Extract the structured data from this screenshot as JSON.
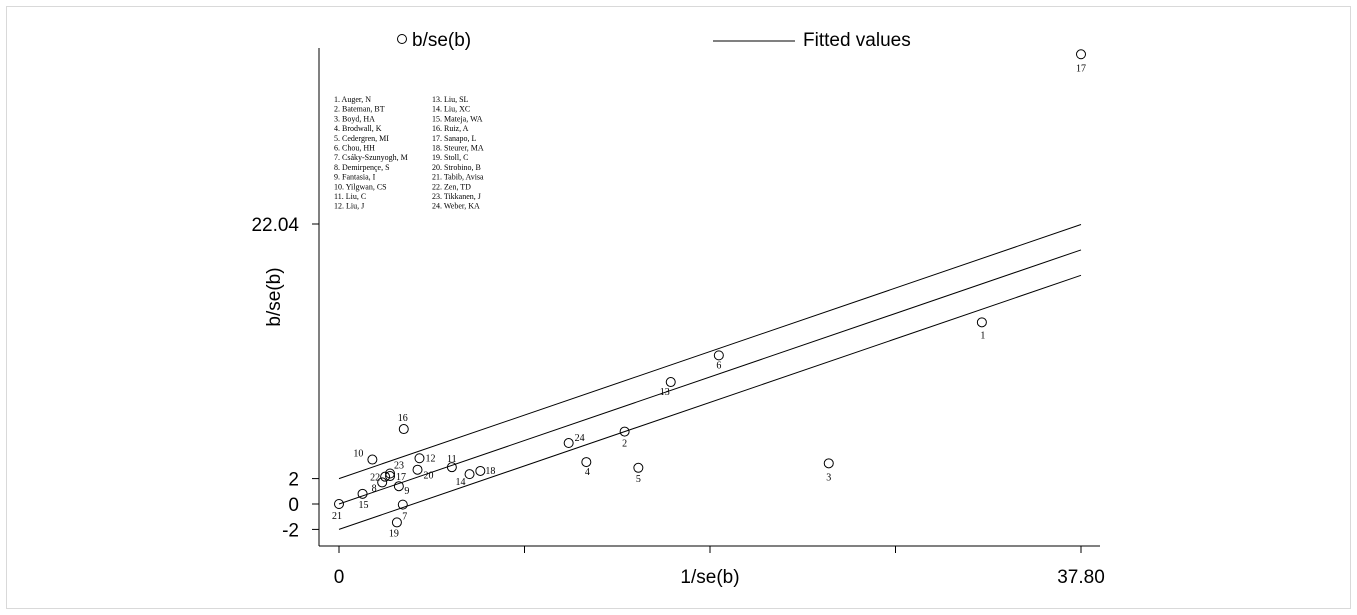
{
  "chart_data": {
    "type": "scatter",
    "xlabel": "1/se(b)",
    "ylabel": "b/se(b)",
    "x_ticks": [
      {
        "value": 0,
        "label": "0"
      },
      {
        "value": 9.45,
        "label": ""
      },
      {
        "value": 18.9,
        "label": "1/se(b)"
      },
      {
        "value": 28.35,
        "label": ""
      },
      {
        "value": 37.8,
        "label": "37.80"
      }
    ],
    "y_ticks": [
      {
        "value": -2,
        "label": "-2"
      },
      {
        "value": 0,
        "label": "0"
      },
      {
        "value": 2,
        "label": "2"
      },
      {
        "value": 22.04,
        "label": "22.04"
      }
    ],
    "xlim": [
      -1.0,
      38.8
    ],
    "ylim": [
      -3.5,
      37.0
    ],
    "legend": [
      {
        "name": "b/se(b)",
        "marker": "hollow-circle"
      },
      {
        "name": "Fitted values",
        "marker": "line"
      }
    ],
    "legend_position": "top",
    "series": [
      {
        "name": "b/se(b)",
        "points": [
          {
            "id": "1",
            "x": 32.75,
            "y": 14.3
          },
          {
            "id": "2",
            "x": 14.55,
            "y": 5.7
          },
          {
            "id": "3",
            "x": 24.95,
            "y": 3.2
          },
          {
            "id": "4",
            "x": 12.6,
            "y": 3.3
          },
          {
            "id": "5",
            "x": 15.25,
            "y": 2.85
          },
          {
            "id": "6",
            "x": 19.35,
            "y": 11.7
          },
          {
            "id": "7",
            "x": 3.25,
            "y": -0.05
          },
          {
            "id": "8",
            "x": 2.2,
            "y": 1.7
          },
          {
            "id": "9",
            "x": 3.05,
            "y": 1.4
          },
          {
            "id": "10",
            "x": 1.7,
            "y": 3.5
          },
          {
            "id": "11",
            "x": 5.75,
            "y": 2.9
          },
          {
            "id": "12",
            "x": 4.1,
            "y": 3.6
          },
          {
            "id": "13",
            "x": 16.9,
            "y": 9.6
          },
          {
            "id": "14",
            "x": 6.65,
            "y": 2.35
          },
          {
            "id": "15",
            "x": 1.2,
            "y": 0.8
          },
          {
            "id": "16",
            "x": 3.3,
            "y": 5.9
          },
          {
            "id": "17",
            "x": 37.8,
            "y": 35.4
          },
          {
            "id": "17",
            "x": 2.6,
            "y": 2.2
          },
          {
            "id": "18",
            "x": 7.2,
            "y": 2.6
          },
          {
            "id": "19",
            "x": 2.95,
            "y": -1.45
          },
          {
            "id": "20",
            "x": 4.0,
            "y": 2.7
          },
          {
            "id": "21",
            "x": 0.0,
            "y": 0.0
          },
          {
            "id": "22",
            "x": 2.35,
            "y": 2.15
          },
          {
            "id": "23",
            "x": 2.6,
            "y": 2.4
          },
          {
            "id": "24",
            "x": 11.7,
            "y": 4.8
          }
        ]
      },
      {
        "name": "Fitted values",
        "lines": [
          {
            "x": [
              0,
              37.8
            ],
            "y": [
              2.0,
              22.0
            ]
          },
          {
            "x": [
              0,
              37.8
            ],
            "y": [
              0.0,
              20.0
            ]
          },
          {
            "x": [
              0,
              37.8
            ],
            "y": [
              -2.0,
              18.0
            ]
          }
        ]
      }
    ],
    "annotations": {
      "study_list_col1": [
        "1. Auger, N",
        "2. Bateman, BT",
        "3. Boyd, HA",
        "4. Brodwall, K",
        "5. Cedergren, MI",
        "6. Chou, HH",
        "7. Csáky-Szunyogh, M",
        "8. Demirpençe, S",
        "9. Fantasia, I",
        "10. Yilgwan, CS",
        "11. Liu, C",
        "12. Liu, J"
      ],
      "study_list_col2": [
        "13. Liu, SL",
        "14. Liu, XC",
        "15. Mateja, WA",
        "16. Ruiz, A",
        "17. Sanapo, L",
        "18. Steurer, MA",
        "19. Stoll, C",
        "20. Strobino, B",
        "21. Tabib, Avisa",
        "22. Zen, TD",
        "23. Tikkanen, J",
        "24. Weber, KA"
      ]
    }
  },
  "colors": {
    "marker": "#000000",
    "line": "#000000",
    "axis": "#000000",
    "frame": "#d9d9d9"
  }
}
